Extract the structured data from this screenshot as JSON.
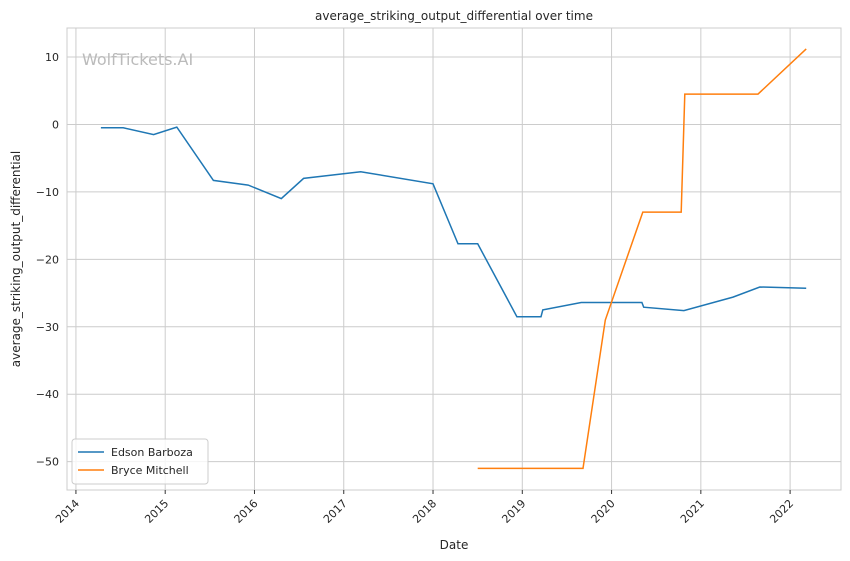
{
  "chart_data": {
    "type": "line",
    "title": "average_striking_output_differential over time",
    "xlabel": "Date",
    "ylabel": "average_striking_output_differential",
    "watermark": "WolfTickets.AI",
    "xlim": [
      2013.9,
      2022.57
    ],
    "ylim": [
      -54.2,
      14.3
    ],
    "xticks": [
      2014,
      2015,
      2016,
      2017,
      2018,
      2019,
      2020,
      2021,
      2022
    ],
    "xtick_labels": [
      "2014",
      "2015",
      "2016",
      "2017",
      "2018",
      "2019",
      "2020",
      "2021",
      "2022"
    ],
    "yticks": [
      10,
      0,
      -10,
      -20,
      -30,
      -40,
      -50
    ],
    "ytick_labels": [
      "10",
      "0",
      "−10",
      "−20",
      "−30",
      "−40",
      "−50"
    ],
    "grid": true,
    "legend_position": "bottom-left",
    "series": [
      {
        "name": "Edson Barboza",
        "color": "#1f77b4",
        "x": [
          2014.28,
          2014.53,
          2014.87,
          2015.13,
          2015.54,
          2015.93,
          2016.3,
          2016.55,
          2017.19,
          2018.0,
          2018.28,
          2018.5,
          2018.94,
          2019.21,
          2019.23,
          2019.66,
          2020.34,
          2020.36,
          2020.81,
          2021.36,
          2021.66,
          2022.18
        ],
        "y": [
          -0.5,
          -0.5,
          -1.5,
          -0.4,
          -8.3,
          -9.0,
          -11.0,
          -8.0,
          -7.0,
          -8.8,
          -17.7,
          -17.7,
          -28.5,
          -28.5,
          -27.5,
          -26.4,
          -26.4,
          -27.1,
          -27.6,
          -25.6,
          -24.1,
          -24.3
        ]
      },
      {
        "name": "Bryce Mitchell",
        "color": "#ff7f0e",
        "x": [
          2018.5,
          2019.68,
          2019.93,
          2020.35,
          2020.78,
          2020.82,
          2021.64,
          2022.18
        ],
        "y": [
          -51.0,
          -51.0,
          -29.0,
          -13.0,
          -13.0,
          4.5,
          4.5,
          11.2
        ]
      }
    ]
  }
}
